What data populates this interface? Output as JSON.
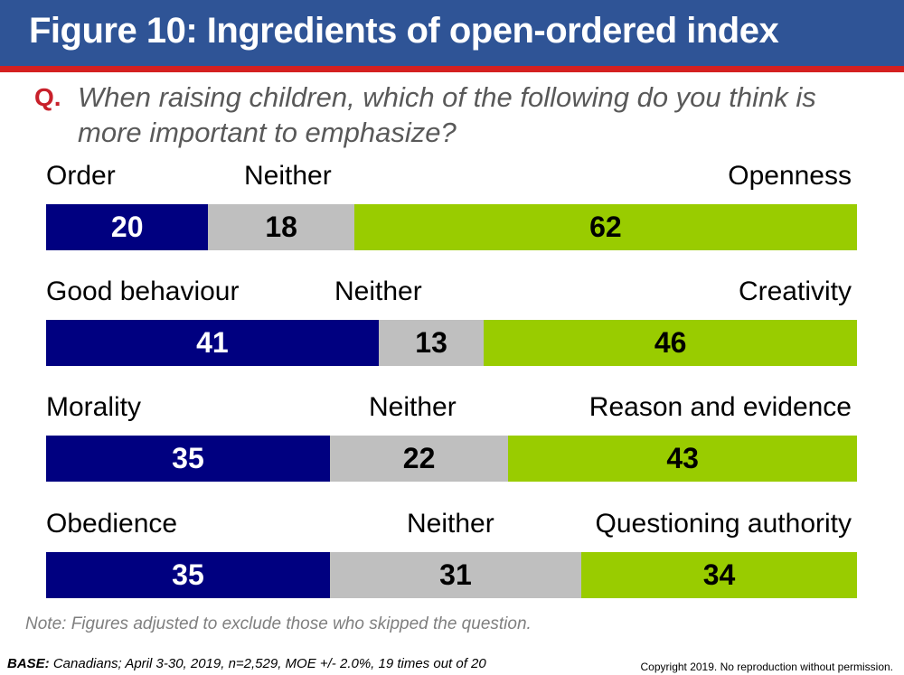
{
  "header": {
    "title": "Figure 10: Ingredients of open-ordered index"
  },
  "question": {
    "marker": "Q.",
    "text": "When raising children, which of the following do you think is more important to emphasize?"
  },
  "chart_data": {
    "type": "bar",
    "stacked": true,
    "orientation": "horizontal",
    "title": "Figure 10: Ingredients of open-ordered index",
    "unit": "%",
    "series": [
      {
        "name": "Left option",
        "color": "#000080"
      },
      {
        "name": "Neither",
        "color": "#bfbfbf"
      },
      {
        "name": "Right option",
        "color": "#99cc00"
      }
    ],
    "rows": [
      {
        "left_label": "Order",
        "neither_label": "Neither",
        "right_label": "Openness",
        "values": [
          20,
          18,
          62
        ]
      },
      {
        "left_label": "Good behaviour",
        "neither_label": "Neither",
        "right_label": "Creativity",
        "values": [
          41,
          13,
          46
        ]
      },
      {
        "left_label": "Morality",
        "neither_label": "Neither",
        "right_label": "Reason and evidence",
        "values": [
          35,
          22,
          43
        ]
      },
      {
        "left_label": "Obedience",
        "neither_label": "Neither",
        "right_label": "Questioning authority",
        "values": [
          35,
          31,
          34
        ]
      }
    ]
  },
  "footer": {
    "note": "Note: Figures adjusted to exclude those who skipped the question.",
    "base_label": "BASE:",
    "base_text": " Canadians; April 3-30, 2019, n=2,529, MOE +/- 2.0%, 19 times out of 20",
    "copyright": "Copyright 2019. No reproduction without permission."
  }
}
